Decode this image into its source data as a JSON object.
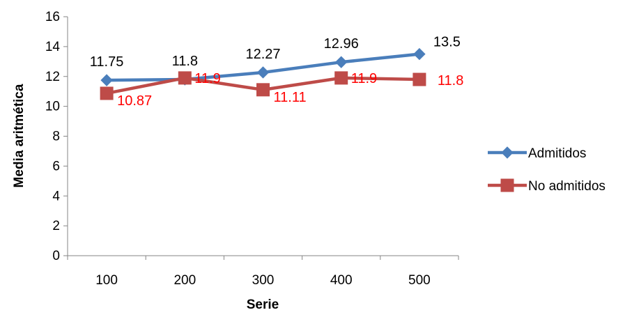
{
  "chart_data": {
    "type": "line",
    "xlabel": "Serie",
    "ylabel": "Media aritmética",
    "categories": [
      "100",
      "200",
      "300",
      "400",
      "500"
    ],
    "ylim": [
      0,
      16
    ],
    "yticks": [
      0,
      2,
      4,
      6,
      8,
      10,
      12,
      14,
      16
    ],
    "grid": false,
    "legend_position": "right",
    "series": [
      {
        "name": "Admitidos",
        "values": [
          11.75,
          11.8,
          12.27,
          12.96,
          13.5
        ],
        "labels": [
          "11.75",
          "11.8",
          "12.27",
          "12.96",
          "13.5"
        ],
        "color": "#4a7ebb",
        "label_color": "#000000",
        "marker": "diamond",
        "label_position": "above"
      },
      {
        "name": "No admitidos",
        "values": [
          10.87,
          11.9,
          11.11,
          11.9,
          11.8
        ],
        "labels": [
          "10.87",
          "11.9",
          "11.11",
          "11.9",
          "11.8"
        ],
        "color": "#be4b48",
        "label_color": "#ff0000",
        "marker": "square",
        "label_position": "right"
      }
    ]
  }
}
